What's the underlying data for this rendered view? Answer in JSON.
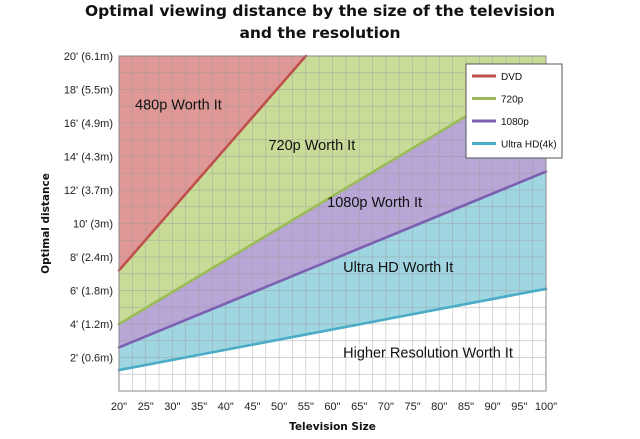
{
  "chart_data": {
    "type": "line",
    "title_line1": "Optimal viewing distance by the size of the television",
    "title_line2": "and the resolution",
    "xlabel": "Television Size",
    "ylabel": "Optimal distance",
    "x_ticks": [
      "20\"",
      "25\"",
      "30\"",
      "35\"",
      "40\"",
      "45\"",
      "50\"",
      "55\"",
      "60\"",
      "65\"",
      "70\"",
      "75\"",
      "80\"",
      "85\"",
      "90\"",
      "95\"",
      "100\""
    ],
    "y_ticks": [
      "2' (0.6m)",
      "4' (1.2m)",
      "6' (1.8m)",
      "8' (2.4m)",
      "10' (3m)",
      "12' (3.7m)",
      "14' (4.3m)",
      "16' (4.9m)",
      "18' (5.5m)",
      "20' (6.1m)"
    ],
    "y_tick_values": [
      2,
      4,
      6,
      8,
      10,
      12,
      14,
      16,
      18,
      20
    ],
    "xlim": [
      20,
      100
    ],
    "ylim": [
      0,
      20
    ],
    "grid": true,
    "legend_position": "top-right",
    "series": [
      {
        "name": "DVD",
        "color": "#c0504d",
        "fill": "#df9896",
        "x": [
          20,
          55
        ],
        "y": [
          7.2,
          20
        ]
      },
      {
        "name": "720p",
        "color": "#9bbb59",
        "fill": "#c8dc98",
        "x": [
          20,
          85
        ],
        "y": [
          4.0,
          16.4
        ]
      },
      {
        "name": "1080p",
        "color": "#7c5fb0",
        "fill": "#b7a6d6",
        "x": [
          20,
          100
        ],
        "y": [
          2.6,
          13.1
        ]
      },
      {
        "name": "Ultra HD(4k)",
        "color": "#4bacc6",
        "fill": "#9fd6e2",
        "x": [
          20,
          100
        ],
        "y": [
          1.25,
          6.1
        ]
      }
    ],
    "region_labels": [
      {
        "text": "480p Worth It",
        "x": 23,
        "y": 16.8
      },
      {
        "text": "720p Worth It",
        "x": 48,
        "y": 14.4
      },
      {
        "text": "1080p Worth It",
        "x": 59,
        "y": 11.0
      },
      {
        "text": "Ultra HD Worth It",
        "x": 62,
        "y": 7.1
      },
      {
        "text": "Higher Resolution Worth It",
        "x": 62,
        "y": 2.0
      }
    ]
  }
}
